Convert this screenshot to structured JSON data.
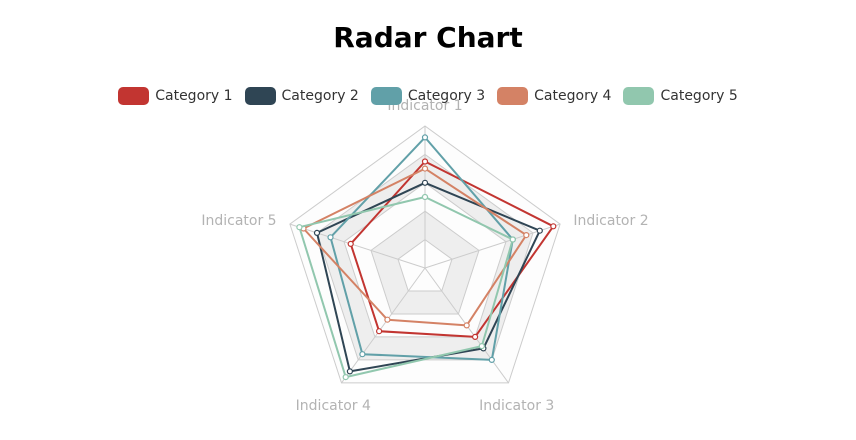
{
  "title": "Radar Chart",
  "chart_data": {
    "type": "radar",
    "title": "Radar Chart",
    "indicators": [
      "Indicator 1",
      "Indicator 2",
      "Indicator 3",
      "Indicator 4",
      "Indicator 5"
    ],
    "max": 100,
    "split_number": 5,
    "legend_position": "top",
    "series": [
      {
        "name": "Category 1",
        "color": "#c23531",
        "values": [
          75,
          95,
          60,
          55,
          55
        ]
      },
      {
        "name": "Category 2",
        "color": "#2f4554",
        "values": [
          60,
          85,
          70,
          90,
          80
        ]
      },
      {
        "name": "Category 3",
        "color": "#61a0a8",
        "values": [
          92,
          65,
          80,
          75,
          70
        ]
      },
      {
        "name": "Category 4",
        "color": "#d48265",
        "values": [
          70,
          75,
          50,
          45,
          90
        ]
      },
      {
        "name": "Category 5",
        "color": "#91c7ae",
        "values": [
          50,
          65,
          68,
          95,
          93
        ]
      }
    ]
  }
}
